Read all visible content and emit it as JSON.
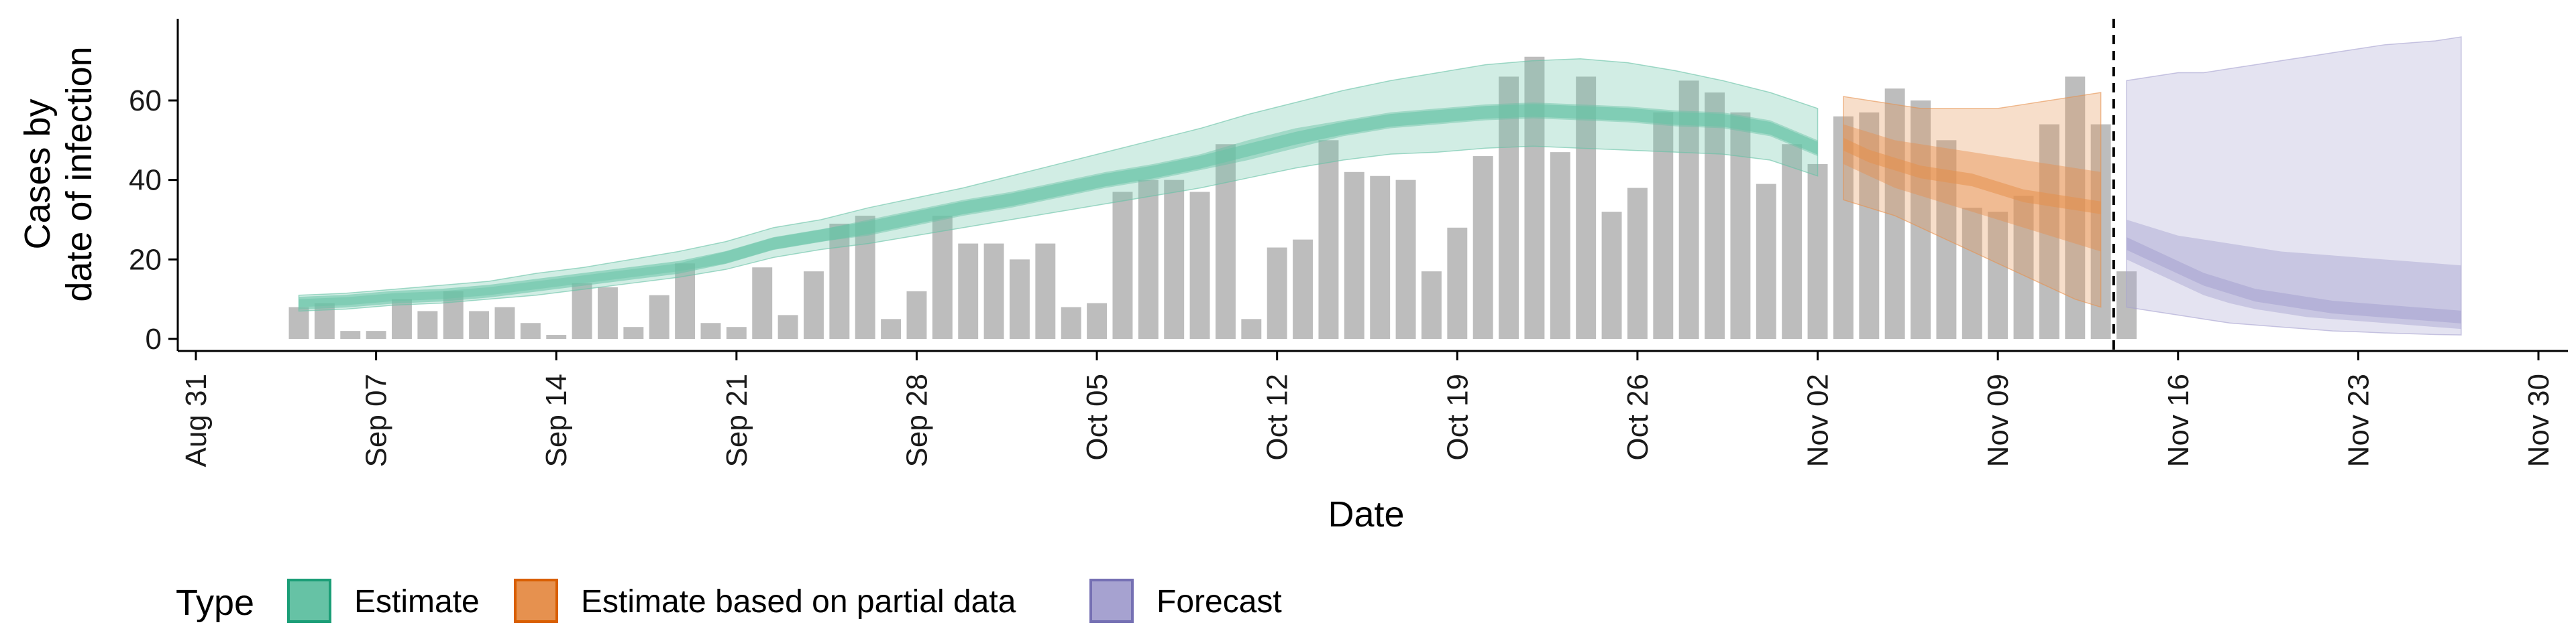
{
  "chart_data": {
    "type": "bar",
    "xlabel": "Date",
    "ylabel_lines": [
      "Cases by",
      "date of infection"
    ],
    "x_range": [
      "Aug 31",
      "Nov 30"
    ],
    "ylim": [
      0,
      80
    ],
    "y_ticks": [
      0,
      20,
      40,
      60
    ],
    "x_ticks": [
      "Aug 31",
      "Sep 07",
      "Sep 14",
      "Sep 21",
      "Sep 28",
      "Oct 05",
      "Oct 12",
      "Oct 19",
      "Oct 26",
      "Nov 02",
      "Nov 09",
      "Nov 16",
      "Nov 23",
      "Nov 30"
    ],
    "reported_cases": {
      "start_date": "Sep 04",
      "values": [
        8,
        9,
        2,
        2,
        10,
        7,
        12,
        7,
        8,
        4,
        1,
        14,
        13,
        3,
        11,
        19,
        4,
        3,
        18,
        6,
        17,
        29,
        31,
        5,
        12,
        31,
        24,
        24,
        20,
        24,
        8,
        9,
        37,
        40,
        40,
        37,
        49,
        5,
        23,
        25,
        50,
        42,
        41,
        40,
        17,
        28,
        46,
        66,
        71,
        47,
        66,
        32,
        38,
        57,
        65,
        62,
        57,
        39,
        49,
        44,
        56,
        57,
        63,
        60,
        50,
        33,
        32,
        36,
        54,
        66,
        54,
        17
      ],
      "color": "#bdbdbd"
    },
    "estimate": {
      "name": "Estimate",
      "color": "#1b9e77",
      "fill": "#66c2a5",
      "x_start": "Sep 04",
      "x_end": "Nov 02",
      "median": [
        9,
        9.5,
        10.5,
        11,
        12,
        13.5,
        15,
        16.5,
        18,
        20.5,
        24,
        26,
        28,
        30.5,
        33,
        35,
        37.5,
        40,
        42,
        44.5,
        47.5,
        50.5,
        53,
        55,
        56,
        57,
        57.5,
        57,
        56.5,
        55.5,
        55,
        53,
        48
      ],
      "lower_90": [
        7,
        7.5,
        8.5,
        9,
        10,
        11,
        12.5,
        14,
        15.5,
        17.5,
        20.5,
        22.5,
        24,
        26,
        28,
        30,
        32,
        34,
        36,
        38,
        40.5,
        43,
        45,
        46.5,
        47,
        48,
        48.5,
        48,
        47.5,
        47,
        46.5,
        45,
        41
      ],
      "upper_90": [
        11,
        11.5,
        12.5,
        13.5,
        14.5,
        16.5,
        18,
        20,
        22,
        24.5,
        28,
        30,
        33,
        35.5,
        38,
        41,
        44,
        47,
        50,
        53,
        56.5,
        59.5,
        62.5,
        65,
        67,
        69,
        70,
        70.5,
        69.5,
        67.5,
        65,
        62,
        58
      ],
      "lower_50": [
        8,
        8.5,
        9.5,
        10,
        11,
        12.5,
        14,
        15.5,
        17,
        19,
        22.5,
        24.5,
        26,
        28.5,
        31,
        33,
        35.5,
        38,
        40,
        42.5,
        45,
        48,
        51,
        53,
        54,
        55,
        55.5,
        55,
        54.5,
        53.5,
        53,
        51,
        46
      ],
      "upper_50": [
        10,
        10.5,
        11.5,
        12,
        13,
        14.5,
        16,
        17.5,
        19,
        22,
        25.5,
        27.5,
        30,
        32.5,
        35,
        37,
        39.5,
        42,
        44,
        46.5,
        50,
        53,
        55,
        57,
        58,
        59,
        59.5,
        59,
        58.5,
        57.5,
        57,
        55,
        50
      ]
    },
    "estimate_partial": {
      "name": "Estimate based on partial data",
      "color": "#d95f02",
      "fill": "#e6914f",
      "x_start": "Nov 03",
      "x_end": "Nov 13",
      "median": [
        49,
        46,
        44,
        42,
        41,
        40,
        38,
        36,
        35,
        34,
        33
      ],
      "lower_90": [
        35,
        33,
        31,
        28,
        25,
        22,
        19,
        16,
        13,
        10,
        8
      ],
      "upper_90": [
        61,
        60,
        59,
        58,
        58,
        58,
        58,
        59,
        60,
        61,
        62
      ],
      "lower_50": [
        44,
        41,
        38,
        36,
        34,
        32,
        30,
        28,
        26,
        24,
        22
      ],
      "upper_50": [
        54,
        52,
        50,
        49,
        48,
        47,
        46,
        45,
        44,
        43,
        42
      ]
    },
    "forecast": {
      "name": "Forecast",
      "color": "#7570b3",
      "fill": "#a6a2d0",
      "x_start": "Nov 14",
      "x_end": "Nov 27",
      "median": [
        24,
        21,
        18,
        15,
        13,
        11,
        10,
        9,
        8,
        7.5,
        7,
        6.5,
        6,
        5.5
      ],
      "lower_90": [
        8,
        7,
        6,
        5,
        4,
        3.5,
        3,
        2.5,
        2,
        1.8,
        1.5,
        1.3,
        1.1,
        1
      ],
      "upper_90": [
        65,
        66,
        67,
        67,
        68,
        69,
        70,
        71,
        72,
        73,
        74,
        74.5,
        75,
        76
      ],
      "lower_50": [
        20,
        17,
        14,
        11,
        9,
        7.5,
        6.5,
        5.5,
        5,
        4.5,
        4,
        3.5,
        3,
        2.5
      ],
      "upper_50": [
        30,
        28,
        26,
        25,
        24,
        23,
        22,
        21.5,
        21,
        20.5,
        20,
        19.5,
        19,
        18.5
      ]
    },
    "cutoff_date": "Nov 13",
    "legend": {
      "title": "Type",
      "position": "bottom",
      "items": [
        {
          "label": "Estimate",
          "fill": "#66c2a5",
          "stroke": "#1b9e77"
        },
        {
          "label": "Estimate based on partial data",
          "fill": "#e6914f",
          "stroke": "#d95f02"
        },
        {
          "label": "Forecast",
          "fill": "#a6a2d0",
          "stroke": "#7570b3"
        }
      ]
    }
  }
}
